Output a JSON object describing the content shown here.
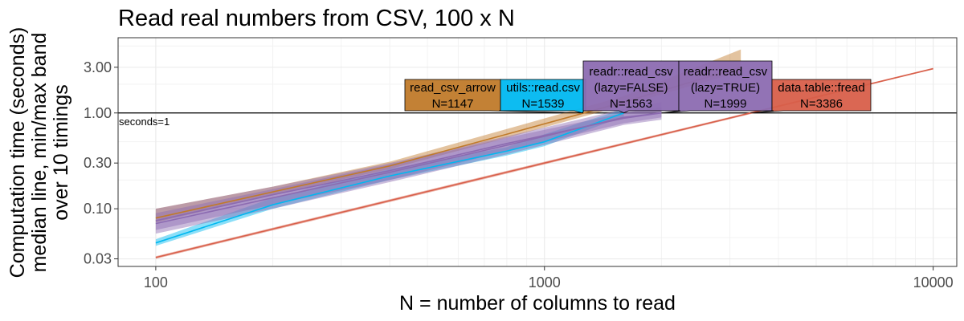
{
  "chart_data": {
    "type": "line",
    "title": "Read real numbers from CSV, 100 x N",
    "xlabel": "N = number of columns to read",
    "ylabel": [
      "Computation time (seconds)",
      "median line, min/max band",
      "over 10 timings"
    ],
    "x_scale": "log10",
    "y_scale": "log10",
    "xlim": [
      80,
      11500
    ],
    "ylim": [
      0.025,
      6.1
    ],
    "x_ticks": [
      100,
      1000,
      10000
    ],
    "x_tick_labels": [
      "100",
      "1000",
      "10000"
    ],
    "y_ticks": [
      0.03,
      0.1,
      0.3,
      1,
      3
    ],
    "y_tick_labels": [
      "0.03",
      "0.10",
      "0.30",
      "1.00",
      "3.00"
    ],
    "grid": true,
    "reference_line": {
      "y": 1,
      "label": "seconds=1"
    },
    "series": [
      {
        "name": "read_csv_arrow",
        "color": "#c07a2a",
        "x": [
          100,
          200,
          400,
          800,
          1600,
          3200
        ],
        "median": [
          0.08,
          0.15,
          0.28,
          0.6,
          1.3,
          3.0
        ],
        "min": [
          0.072,
          0.14,
          0.26,
          0.55,
          1.2,
          2.7
        ],
        "max": [
          0.1,
          0.17,
          0.31,
          0.68,
          1.5,
          4.6
        ],
        "label": [
          "read_csv_arrow",
          "N=1147"
        ]
      },
      {
        "name": "utils::read.csv",
        "color": "#00b8f0",
        "x": [
          100,
          200,
          400,
          800,
          1000,
          1600
        ],
        "median": [
          0.044,
          0.11,
          0.22,
          0.4,
          0.5,
          1.0
        ],
        "min": [
          0.041,
          0.1,
          0.2,
          0.36,
          0.45,
          0.92
        ],
        "max": [
          0.048,
          0.13,
          0.26,
          0.44,
          0.6,
          1.1
        ],
        "label": [
          "utils::read.csv",
          "N=1539"
        ]
      },
      {
        "name": "readr::read_csv (lazy=FALSE)",
        "color": "#8c6bb1",
        "x": [
          100,
          200,
          400,
          800,
          1600,
          2000
        ],
        "median": [
          0.07,
          0.13,
          0.24,
          0.46,
          0.9,
          1.0
        ],
        "min": [
          0.055,
          0.1,
          0.19,
          0.37,
          0.75,
          0.85
        ],
        "max": [
          0.1,
          0.17,
          0.3,
          0.57,
          1.1,
          1.3
        ],
        "label": [
          "readr::read_csv",
          "(lazy=FALSE)",
          "N=1563"
        ]
      },
      {
        "name": "readr::read_csv (lazy=TRUE)",
        "color": "#8c6bb1",
        "x": [
          100,
          200,
          400,
          800,
          1600,
          2000
        ],
        "median": [
          0.075,
          0.14,
          0.25,
          0.48,
          0.88,
          1.0
        ],
        "min": [
          0.06,
          0.11,
          0.2,
          0.4,
          0.78,
          0.9
        ],
        "max": [
          0.09,
          0.16,
          0.29,
          0.55,
          1.0,
          1.15
        ],
        "label": [
          "readr::read_csv",
          "(lazy=TRUE)",
          "N=1999"
        ]
      },
      {
        "name": "data.table::fread",
        "color": "#d85f4a",
        "x": [
          100,
          1000,
          10000
        ],
        "median": [
          0.031,
          0.3,
          2.9
        ],
        "min": [
          0.03,
          0.29,
          2.85
        ],
        "max": [
          0.032,
          0.31,
          2.95
        ],
        "label": [
          "data.table::fread",
          "N=3386"
        ]
      }
    ]
  }
}
